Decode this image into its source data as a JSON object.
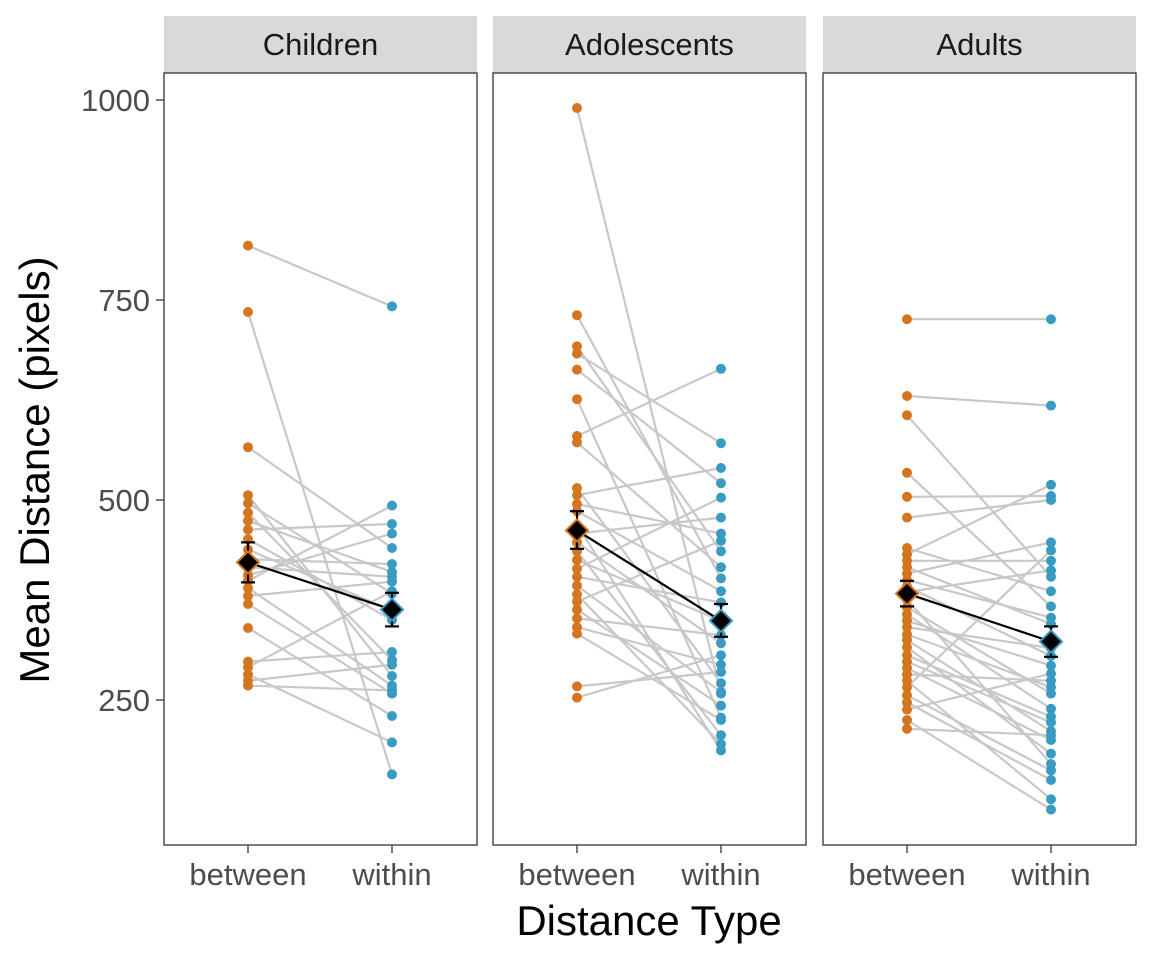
{
  "chart_data": {
    "type": "scatter",
    "xlabel": "Distance Type",
    "ylabel": "Mean Distance (pixels)",
    "categories": [
      "between",
      "within"
    ],
    "y_ticks": [
      250,
      500,
      750,
      1000
    ],
    "ylim": [
      108,
      1032
    ],
    "grid": false,
    "legend": "none",
    "colors": {
      "between": "#d4761f",
      "within": "#3a9bc1",
      "pair_line": "#c8c8c8",
      "mean": "#000000",
      "strip_fill": "#d9d9d9"
    },
    "panels": [
      {
        "name": "Children",
        "pairs": [
          [
            818,
            742
          ],
          [
            735,
            157
          ],
          [
            566,
            440
          ],
          [
            506,
            280
          ],
          [
            496,
            383
          ],
          [
            484,
            300
          ],
          [
            474,
            410
          ],
          [
            463,
            470
          ],
          [
            451,
            350
          ],
          [
            438,
            362
          ],
          [
            426,
            420
          ],
          [
            416,
            404
          ],
          [
            406,
            458
          ],
          [
            399,
            493
          ],
          [
            390,
            268
          ],
          [
            380,
            398
          ],
          [
            370,
            258
          ],
          [
            340,
            230
          ],
          [
            298,
            310
          ],
          [
            291,
            386
          ],
          [
            282,
            197
          ],
          [
            274,
            294
          ],
          [
            268,
            262
          ]
        ],
        "mean": [
          422,
          363
        ],
        "error": [
          [
            397,
            447
          ],
          [
            342,
            384
          ]
        ]
      },
      {
        "name": "Adolescents",
        "pairs": [
          [
            990,
            258
          ],
          [
            731,
            402
          ],
          [
            692,
            436
          ],
          [
            683,
            571
          ],
          [
            663,
            521
          ],
          [
            626,
            228
          ],
          [
            580,
            664
          ],
          [
            572,
            416
          ],
          [
            515,
            271
          ],
          [
            506,
            540
          ],
          [
            495,
            458
          ],
          [
            486,
            386
          ],
          [
            469,
            187
          ],
          [
            458,
            478
          ],
          [
            447,
            321
          ],
          [
            436,
            206
          ],
          [
            425,
            349
          ],
          [
            414,
            503
          ],
          [
            404,
            372
          ],
          [
            393,
            260
          ],
          [
            382,
            195
          ],
          [
            373,
            449
          ],
          [
            363,
            243
          ],
          [
            352,
            331
          ],
          [
            341,
            294
          ],
          [
            333,
            225
          ],
          [
            267,
            285
          ],
          [
            253,
            306
          ]
        ],
        "mean": [
          462,
          349
        ],
        "error": [
          [
            439,
            486
          ],
          [
            329,
            370
          ]
        ]
      },
      {
        "name": "Adults",
        "pairs": [
          [
            726,
            726
          ],
          [
            630,
            618
          ],
          [
            606,
            404
          ],
          [
            534,
            367
          ],
          [
            504,
            505
          ],
          [
            478,
            500
          ],
          [
            440,
            386
          ],
          [
            432,
            519
          ],
          [
            424,
            424
          ],
          [
            416,
            345
          ],
          [
            408,
            447
          ],
          [
            400,
            353
          ],
          [
            392,
            305
          ],
          [
            385,
            412
          ],
          [
            376,
            170
          ],
          [
            366,
            258
          ],
          [
            357,
            239
          ],
          [
            349,
            293
          ],
          [
            341,
            315
          ],
          [
            332,
            266
          ],
          [
            325,
            211
          ],
          [
            316,
            183
          ],
          [
            306,
            229
          ],
          [
            298,
            222
          ],
          [
            290,
            200
          ],
          [
            282,
            274
          ],
          [
            274,
            126
          ],
          [
            266,
            437
          ],
          [
            256,
            162
          ],
          [
            247,
            150
          ],
          [
            238,
            283
          ],
          [
            225,
            113
          ],
          [
            214,
            206
          ]
        ],
        "mean": [
          383,
          323
        ],
        "error": [
          [
            367,
            399
          ],
          [
            304,
            342
          ]
        ]
      }
    ]
  }
}
